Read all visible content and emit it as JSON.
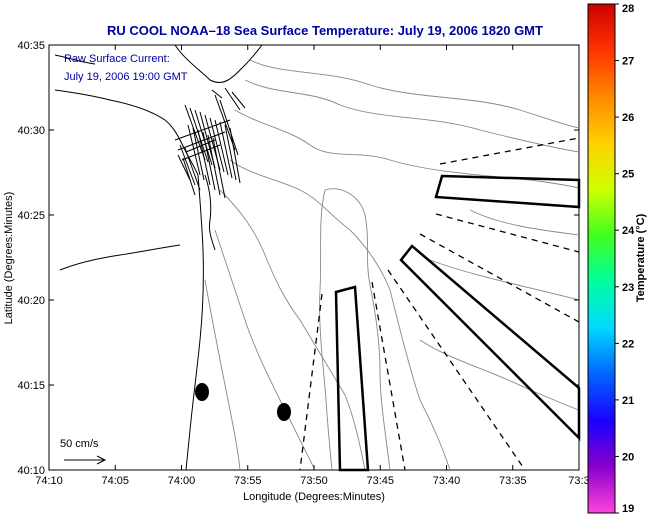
{
  "title": "RU COOL  NOAA–18  Sea Surface Temperature:  July 19, 2006 1820 GMT",
  "current_note": {
    "line1": "Raw Surface Current:",
    "line2": "July 19, 2006 19:00 GMT"
  },
  "scale_arrow_label": "50 cm/s",
  "x_axis": {
    "label": "Longitude (Degrees:Minutes)",
    "ticks": [
      "74:10",
      "74:05",
      "74:00",
      "73:55",
      "73:50",
      "73:45",
      "73:40",
      "73:35",
      "73:3"
    ]
  },
  "y_axis": {
    "label": "Latitude (Degrees:Minutes)",
    "ticks": [
      "40:35",
      "40:30",
      "40:25",
      "40:20",
      "40:15",
      "40:10"
    ]
  },
  "colorbar": {
    "label": "Temperature (°C)",
    "ticks": [
      "28",
      "27",
      "26",
      "25",
      "24",
      "23",
      "22",
      "21",
      "20",
      "19"
    ],
    "colors": [
      "#cc0000",
      "#ff3300",
      "#ff8800",
      "#ffd000",
      "#d0ff00",
      "#40ff20",
      "#00ffa0",
      "#00d8ff",
      "#0066ff",
      "#1a00ff",
      "#8800cc",
      "#ff44dd"
    ]
  }
}
